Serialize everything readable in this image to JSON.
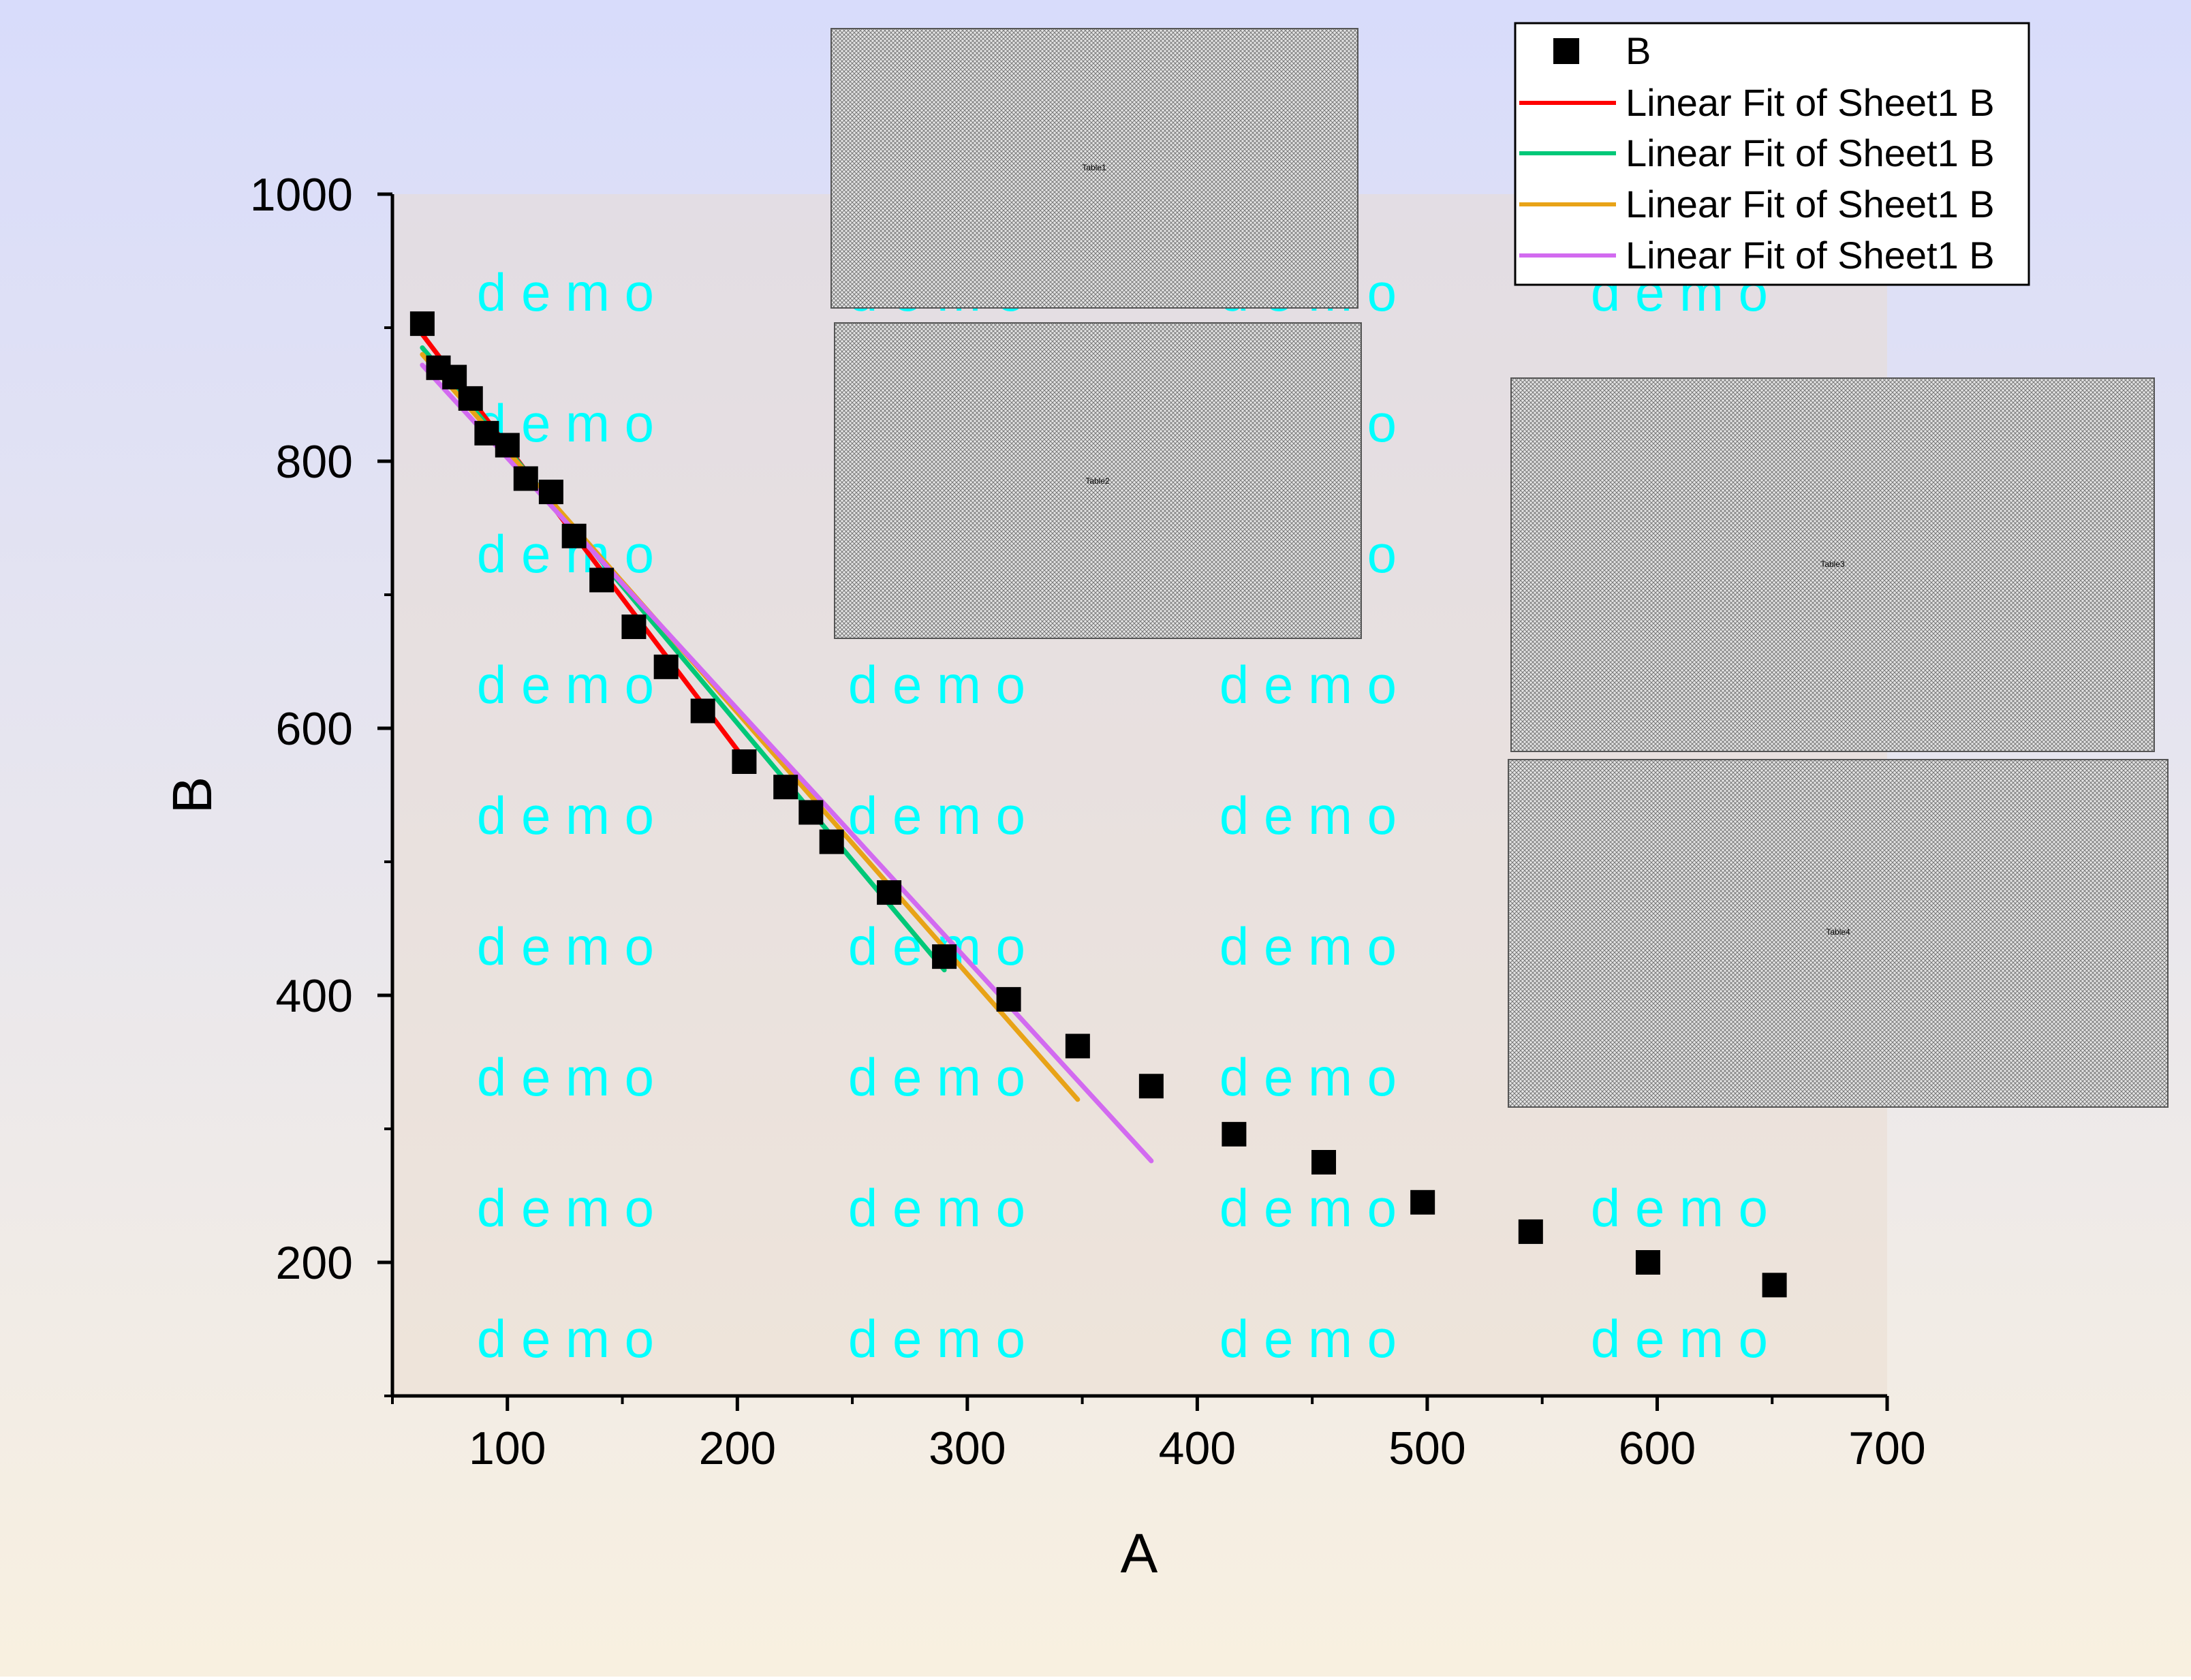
{
  "chart_data": {
    "type": "scatter",
    "xlabel": "A",
    "ylabel": "B",
    "xlim": [
      50,
      700
    ],
    "ylim": [
      100,
      1000
    ],
    "x_ticks": [
      100,
      200,
      300,
      400,
      500,
      600,
      700
    ],
    "y_ticks": [
      200,
      400,
      600,
      800,
      1000
    ],
    "grid": false,
    "legend_position": "top-right",
    "watermark_text": "d e m o",
    "colors": {
      "points": "#000000",
      "fit1": "#ff0000",
      "fit2": "#00c878",
      "fit3": "#e8a317",
      "fit4": "#d26af0",
      "watermark": "#00ffff",
      "bg_top": "#d8dcfb",
      "bg_bottom": "#f8f0e0"
    },
    "series": [
      {
        "name": "B",
        "kind": "points",
        "x": [
          63,
          70,
          77,
          84,
          91,
          100,
          108,
          119,
          129,
          141,
          155,
          169,
          185,
          203,
          221,
          232,
          241,
          266,
          290,
          318,
          348,
          380,
          416,
          455,
          498,
          545,
          596,
          651
        ],
        "y": [
          903,
          870,
          863,
          847,
          821,
          812,
          787,
          777,
          744,
          711,
          676,
          646,
          613,
          575,
          556,
          537,
          515,
          477,
          429,
          397,
          362,
          332,
          296,
          275,
          245,
          223,
          200,
          183
        ]
      },
      {
        "name": "Linear Fit of Sheet1 B",
        "kind": "line",
        "x": [
          63,
          203
        ],
        "y": [
          895,
          577
        ]
      },
      {
        "name": "Linear Fit of Sheet1 B",
        "kind": "line",
        "x": [
          63,
          290
        ],
        "y": [
          885,
          419
        ]
      },
      {
        "name": "Linear Fit of Sheet1 B",
        "kind": "line",
        "x": [
          63,
          348
        ],
        "y": [
          880,
          322
        ]
      },
      {
        "name": "Linear Fit of Sheet1 B",
        "kind": "line",
        "x": [
          63,
          380
        ],
        "y": [
          872,
          276
        ]
      }
    ],
    "inset_tables": [
      "Table1",
      "Table2",
      "Table3",
      "Table4"
    ]
  }
}
